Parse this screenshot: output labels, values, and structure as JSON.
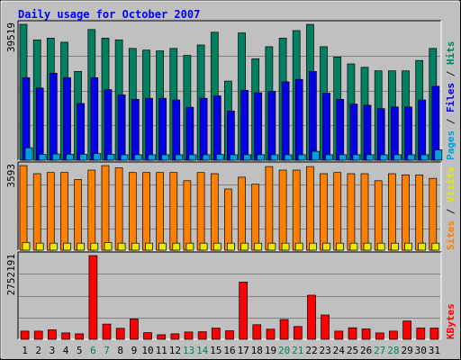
{
  "chart_data": {
    "type": "bar",
    "title": "Daily usage for October 2007",
    "categories": [
      "1",
      "2",
      "3",
      "4",
      "5",
      "6",
      "7",
      "8",
      "9",
      "10",
      "11",
      "12",
      "13",
      "14",
      "15",
      "16",
      "17",
      "18",
      "19",
      "20",
      "21",
      "22",
      "23",
      "24",
      "25",
      "26",
      "27",
      "28",
      "29",
      "30",
      "31"
    ],
    "weekend_days": [
      "6",
      "7",
      "13",
      "14",
      "20",
      "21",
      "27",
      "28"
    ],
    "panels": [
      {
        "id": "hits",
        "ymax_label": "39519",
        "ymax": 39519,
        "right_label": {
          "parts": [
            "Pages",
            " / ",
            "Files",
            " / ",
            "Hits"
          ],
          "colors": [
            "#00a0e0",
            "#202020",
            "#0000e8",
            "#202020",
            "#008060"
          ]
        },
        "series": [
          {
            "name": "Hits",
            "color": "#008060",
            "values": [
              39519,
              35000,
              35500,
              34300,
              25800,
              38000,
              35500,
              35000,
              32500,
              32000,
              31800,
              32500,
              30500,
              33500,
              37200,
              23000,
              37000,
              29500,
              33000,
              35500,
              37700,
              39500,
              33000,
              30000,
              28000,
              27000,
              26000,
              26000,
              26000,
              29000,
              32500
            ]
          },
          {
            "name": "Files",
            "color": "#0000e8",
            "values": [
              24000,
              21000,
              25300,
              24000,
              16500,
              24000,
              20500,
              19000,
              17700,
              18000,
              18000,
              17500,
              15400,
              18000,
              18700,
              14300,
              20300,
              19600,
              20000,
              22800,
              23500,
              25800,
              19500,
              17700,
              16300,
              16000,
              15000,
              15500,
              15500,
              17500,
              21500
            ]
          },
          {
            "name": "Pages",
            "color": "#00a0e0",
            "values": [
              3600,
              1700,
              1800,
              1700,
              1700,
              1900,
              1700,
              1600,
              1600,
              1600,
              1600,
              1600,
              1600,
              1600,
              1700,
              1600,
              1600,
              1600,
              1600,
              1600,
              1600,
              2600,
              1600,
              1600,
              1600,
              1600,
              1600,
              1600,
              1600,
              1600,
              3000
            ]
          }
        ]
      },
      {
        "id": "visits",
        "ymax_label": "3593",
        "ymax": 3593,
        "right_label": {
          "parts": [
            "Sites",
            " / ",
            "Visits"
          ],
          "colors": [
            "#ff8000",
            "#202020",
            "#e8e800"
          ]
        },
        "series": [
          {
            "name": "Visits",
            "color": "#ff8000",
            "values": [
              3593,
              3250,
              3300,
              3300,
              3000,
              3400,
              3593,
              3500,
              3300,
              3300,
              3300,
              3300,
              2950,
              3300,
              3250,
              2600,
              3100,
              2800,
              3550,
              3400,
              3400,
              3550,
              3250,
              3300,
              3250,
              3250,
              2950,
              3250,
              3200,
              3200,
              3050
            ]
          },
          {
            "name": "Sites",
            "color": "#e8e800",
            "values": [
              330,
              300,
              300,
              300,
              300,
              300,
              330,
              300,
              300,
              300,
              300,
              300,
              300,
              300,
              300,
              300,
              300,
              300,
              300,
              300,
              300,
              300,
              300,
              300,
              300,
              300,
              300,
              300,
              300,
              300,
              300
            ]
          }
        ]
      },
      {
        "id": "kbytes",
        "ymax_label": "2752191",
        "ymax": 2752191,
        "right_label": {
          "parts": [
            "KBytes"
          ],
          "colors": [
            "#ff0000"
          ]
        },
        "series": [
          {
            "name": "KBytes",
            "color": "#ff0000",
            "values": [
              270000,
              270000,
              310000,
              210000,
              180000,
              2752191,
              500000,
              360000,
              670000,
              220000,
              150000,
              180000,
              240000,
              250000,
              370000,
              280000,
              1880000,
              480000,
              330000,
              650000,
              420000,
              1450000,
              800000,
              270000,
              380000,
              340000,
              210000,
              270000,
              600000,
              370000,
              370000
            ]
          }
        ]
      }
    ]
  }
}
